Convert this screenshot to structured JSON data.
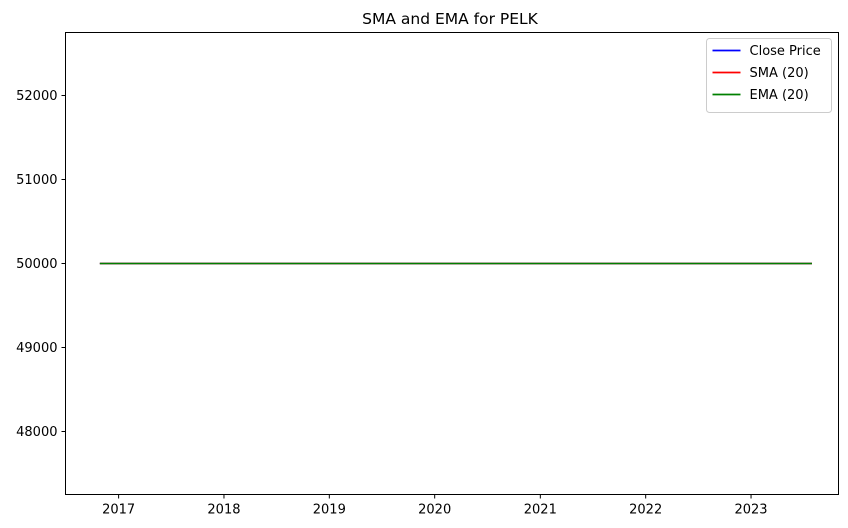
{
  "chart_data": {
    "type": "line",
    "title": "SMA and EMA for PELK",
    "xlabel": "",
    "ylabel": "",
    "x_start": "2016-10-28",
    "x_end": "2023-07-31",
    "xlim": [
      "2016-07-01",
      "2023-10-31"
    ],
    "ylim": [
      47250,
      52750
    ],
    "x_ticks": [
      "2017",
      "2018",
      "2019",
      "2020",
      "2021",
      "2022",
      "2023"
    ],
    "y_ticks": [
      "48000",
      "49000",
      "50000",
      "51000",
      "52000"
    ],
    "y_tick_values": [
      48000,
      49000,
      50000,
      51000,
      52000
    ],
    "grid": false,
    "legend_position": "top-right",
    "series": [
      {
        "name": "Close Price",
        "color": "#0000ff",
        "x": [
          "2016-10-28",
          "2023-07-31"
        ],
        "values": [
          50000,
          50000
        ]
      },
      {
        "name": "SMA (20)",
        "color": "#ff0000",
        "x": [
          "2016-10-28",
          "2023-07-31"
        ],
        "values": [
          50000,
          50000
        ]
      },
      {
        "name": "EMA (20)",
        "color": "#008000",
        "x": [
          "2016-10-28",
          "2023-07-31"
        ],
        "values": [
          50000,
          50000
        ]
      }
    ]
  }
}
